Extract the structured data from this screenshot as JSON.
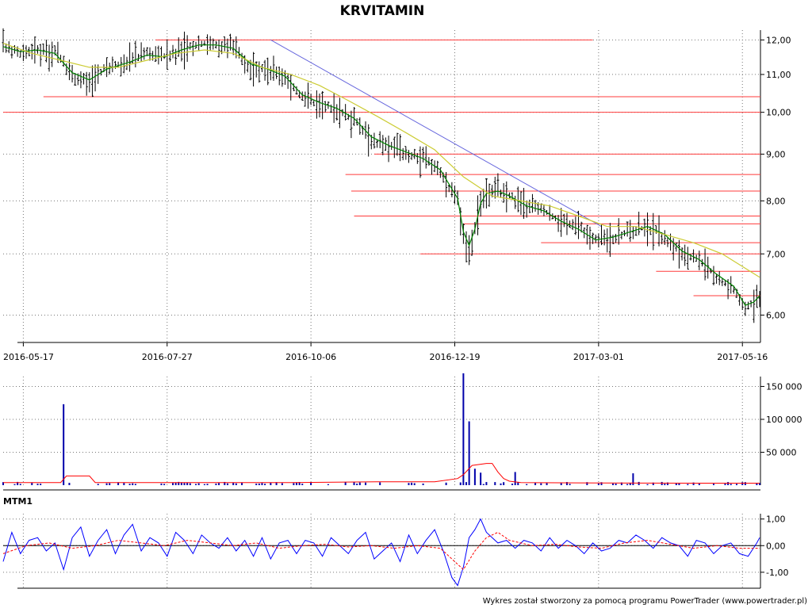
{
  "chart_data": {
    "type": "line",
    "title": "KRVITAMIN",
    "footer": "Wykres został stworzony za pomocą programu PowerTrader (www.powertrader.pl)",
    "price_panel": {
      "scale": "log",
      "ylim": [
        5.6,
        12.3
      ],
      "y_ticks": [
        {
          "value": 12,
          "label": "12,00"
        },
        {
          "value": 11,
          "label": "11,00"
        },
        {
          "value": 10,
          "label": "10,00"
        },
        {
          "value": 9,
          "label": "9,00"
        },
        {
          "value": 8,
          "label": "8,00"
        },
        {
          "value": 7,
          "label": "7,00"
        },
        {
          "value": 6,
          "label": "6,00"
        }
      ],
      "x_ticks": [
        {
          "index": 7,
          "label": "2016-05-17"
        },
        {
          "index": 57,
          "label": "2016-07-27"
        },
        {
          "index": 107,
          "label": "2016-10-06"
        },
        {
          "index": 157,
          "label": "2016-12-19"
        },
        {
          "index": 207,
          "label": "2017-03-01"
        },
        {
          "index": 257,
          "label": "2017-05-16"
        }
      ],
      "bars": {
        "count": 264
      },
      "series": [
        {
          "role": "price",
          "color": "#000000",
          "x": [
            0,
            6,
            12,
            18,
            24,
            30,
            36,
            44,
            50,
            56,
            62,
            68,
            74,
            80,
            86,
            92,
            98,
            104,
            110,
            116,
            122,
            128,
            134,
            140,
            146,
            152,
            158,
            160,
            162,
            164,
            166,
            168,
            172,
            176,
            182,
            188,
            194,
            200,
            206,
            212,
            218,
            224,
            230,
            236,
            242,
            248,
            254,
            258,
            261,
            263
          ],
          "y": [
            11.8,
            11.6,
            11.7,
            11.6,
            11.0,
            10.8,
            11.2,
            11.4,
            11.6,
            11.5,
            11.7,
            11.9,
            11.85,
            11.8,
            11.2,
            11.1,
            10.9,
            10.4,
            10.2,
            10.1,
            9.8,
            9.3,
            9.2,
            9.0,
            8.9,
            8.6,
            8.0,
            7.3,
            7.1,
            7.5,
            8.0,
            8.2,
            8.2,
            8.1,
            7.9,
            7.8,
            7.6,
            7.5,
            7.25,
            7.3,
            7.4,
            7.5,
            7.3,
            7.0,
            6.9,
            6.6,
            6.4,
            6.1,
            6.2,
            6.3
          ]
        },
        {
          "role": "ma-short",
          "color": "#008000",
          "x": [
            0,
            6,
            12,
            18,
            24,
            30,
            36,
            44,
            50,
            56,
            62,
            68,
            74,
            80,
            86,
            92,
            98,
            104,
            110,
            116,
            122,
            128,
            134,
            140,
            146,
            152,
            158,
            160,
            162,
            164,
            166,
            168,
            172,
            176,
            182,
            188,
            194,
            200,
            206,
            212,
            218,
            224,
            230,
            236,
            242,
            248,
            254,
            258,
            261,
            263
          ],
          "y": [
            11.8,
            11.65,
            11.7,
            11.6,
            11.05,
            10.85,
            11.15,
            11.35,
            11.55,
            11.5,
            11.7,
            11.85,
            11.85,
            11.75,
            11.3,
            11.15,
            10.95,
            10.45,
            10.25,
            10.1,
            9.85,
            9.4,
            9.2,
            9.05,
            8.9,
            8.65,
            8.05,
            7.4,
            7.15,
            7.45,
            7.95,
            8.15,
            8.2,
            8.1,
            7.9,
            7.8,
            7.6,
            7.45,
            7.25,
            7.3,
            7.4,
            7.5,
            7.35,
            7.05,
            6.9,
            6.65,
            6.45,
            6.15,
            6.2,
            6.3
          ]
        },
        {
          "role": "ma-long",
          "color": "#cccc33",
          "x": [
            0,
            10,
            20,
            30,
            40,
            50,
            60,
            70,
            80,
            90,
            100,
            110,
            120,
            130,
            140,
            150,
            160,
            170,
            180,
            190,
            200,
            210,
            220,
            230,
            240,
            250,
            263
          ],
          "y": [
            11.9,
            11.6,
            11.4,
            11.2,
            11.2,
            11.4,
            11.6,
            11.7,
            11.6,
            11.2,
            11.0,
            10.7,
            10.3,
            9.9,
            9.5,
            9.1,
            8.5,
            8.1,
            8.0,
            7.9,
            7.7,
            7.5,
            7.5,
            7.35,
            7.2,
            7.0,
            6.6
          ]
        }
      ],
      "trendline": {
        "color": "#6666dd",
        "from": {
          "index": 93,
          "value": 12.0
        },
        "to": {
          "index": 208,
          "value": 7.5
        }
      },
      "horizontal_levels": [
        {
          "value": 12.0,
          "from": 53,
          "to": 205
        },
        {
          "value": 10.4,
          "from": 14,
          "to": 264
        },
        {
          "value": 10.0,
          "from": 0,
          "to": 264
        },
        {
          "value": 9.0,
          "from": 129,
          "to": 264
        },
        {
          "value": 8.55,
          "from": 119,
          "to": 264
        },
        {
          "value": 8.2,
          "from": 121,
          "to": 264
        },
        {
          "value": 7.7,
          "from": 122,
          "to": 264
        },
        {
          "value": 7.55,
          "from": 160,
          "to": 264
        },
        {
          "value": 7.2,
          "from": 187,
          "to": 264
        },
        {
          "value": 7.0,
          "from": 145,
          "to": 264
        },
        {
          "value": 6.7,
          "from": 227,
          "to": 264
        },
        {
          "value": 6.3,
          "from": 240,
          "to": 264
        }
      ]
    },
    "volume_panel": {
      "ylim": [
        0,
        165000
      ],
      "y_ticks": [
        {
          "value": 150000,
          "label": "150 000"
        },
        {
          "value": 100000,
          "label": "100 000"
        },
        {
          "value": 50000,
          "label": "50 000"
        }
      ],
      "spikes": [
        {
          "index": 21,
          "value": 123000
        },
        {
          "index": 160,
          "value": 170000
        },
        {
          "index": 162,
          "value": 97000
        },
        {
          "index": 164,
          "value": 25000
        },
        {
          "index": 166,
          "value": 19000
        },
        {
          "index": 178,
          "value": 20000
        },
        {
          "index": 219,
          "value": 18000
        }
      ],
      "average": {
        "color": "#ff0000",
        "x": [
          0,
          20,
          22,
          30,
          32,
          60,
          80,
          100,
          130,
          150,
          158,
          160,
          163,
          168,
          170,
          172,
          174,
          176,
          180,
          200,
          240,
          263
        ],
        "y": [
          4000,
          4000,
          14000,
          14000,
          4000,
          4000,
          4000,
          4000,
          5000,
          5000,
          10000,
          16000,
          30000,
          33000,
          33000,
          20000,
          10000,
          6000,
          4000,
          3500,
          3000,
          3000
        ]
      }
    },
    "mtm_panel": {
      "label": "MTM1",
      "ylim": [
        -1.6,
        1.2
      ],
      "y_ticks": [
        {
          "value": 1.0,
          "label": "1,00"
        },
        {
          "value": 0.0,
          "label": "0,00"
        },
        {
          "value": -1.0,
          "label": "-1,00"
        }
      ],
      "series": [
        {
          "role": "mtm",
          "color": "#0000ff",
          "x": [
            0,
            3,
            6,
            9,
            12,
            15,
            18,
            21,
            24,
            27,
            30,
            33,
            36,
            39,
            42,
            45,
            48,
            51,
            54,
            57,
            60,
            63,
            66,
            69,
            72,
            75,
            78,
            81,
            84,
            87,
            90,
            93,
            96,
            99,
            102,
            105,
            108,
            111,
            114,
            117,
            120,
            123,
            126,
            129,
            132,
            135,
            138,
            141,
            144,
            147,
            150,
            153,
            156,
            158,
            160,
            162,
            164,
            166,
            168,
            170,
            172,
            175,
            178,
            181,
            184,
            187,
            190,
            193,
            196,
            199,
            202,
            205,
            208,
            211,
            214,
            217,
            220,
            223,
            226,
            229,
            232,
            235,
            238,
            241,
            244,
            247,
            250,
            253,
            256,
            259,
            262,
            263
          ],
          "y": [
            -0.6,
            0.5,
            -0.3,
            0.2,
            0.3,
            -0.2,
            0.1,
            -0.9,
            0.3,
            0.7,
            -0.4,
            0.2,
            0.6,
            -0.3,
            0.4,
            0.8,
            -0.2,
            0.3,
            0.1,
            -0.4,
            0.5,
            0.2,
            -0.3,
            0.4,
            0.1,
            -0.1,
            0.3,
            -0.2,
            0.2,
            -0.4,
            0.3,
            -0.5,
            0.1,
            0.2,
            -0.3,
            0.2,
            0.1,
            -0.4,
            0.3,
            0.0,
            -0.3,
            0.2,
            0.5,
            -0.5,
            -0.2,
            0.1,
            -0.6,
            0.4,
            -0.3,
            0.2,
            0.6,
            -0.2,
            -1.2,
            -1.5,
            -0.8,
            0.3,
            0.6,
            1.0,
            0.5,
            0.3,
            0.1,
            0.2,
            -0.1,
            0.2,
            0.1,
            -0.2,
            0.3,
            -0.1,
            0.2,
            0.0,
            -0.3,
            0.1,
            -0.2,
            -0.1,
            0.2,
            0.1,
            0.4,
            0.2,
            -0.1,
            0.3,
            0.1,
            0.0,
            -0.4,
            0.2,
            0.1,
            -0.3,
            0.0,
            0.1,
            -0.3,
            -0.4,
            0.1,
            0.3
          ]
        },
        {
          "role": "mtm-signal",
          "color": "#ff0000",
          "x": [
            0,
            8,
            16,
            24,
            32,
            40,
            48,
            56,
            64,
            72,
            80,
            88,
            96,
            104,
            112,
            120,
            128,
            136,
            144,
            152,
            156,
            160,
            164,
            168,
            172,
            176,
            184,
            192,
            200,
            208,
            216,
            224,
            232,
            240,
            248,
            256,
            263
          ],
          "y": [
            -0.3,
            0.0,
            0.1,
            -0.1,
            0.0,
            0.2,
            0.1,
            0.0,
            0.2,
            0.1,
            0.0,
            0.1,
            -0.1,
            0.0,
            0.05,
            -0.05,
            0.0,
            -0.1,
            0.0,
            -0.1,
            -0.5,
            -0.9,
            -0.2,
            0.3,
            0.5,
            0.2,
            0.0,
            0.05,
            -0.05,
            -0.1,
            0.1,
            0.2,
            0.05,
            -0.1,
            0.0,
            -0.1,
            -0.1
          ]
        }
      ]
    }
  }
}
